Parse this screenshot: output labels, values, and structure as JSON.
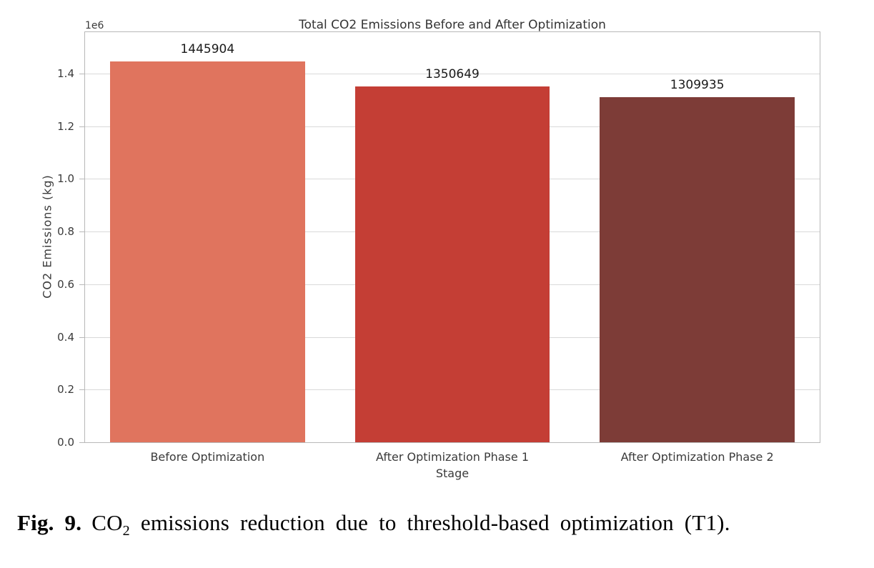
{
  "chart_data": {
    "type": "bar",
    "title": "Total CO2 Emissions Before and After Optimization",
    "xlabel": "Stage",
    "ylabel": "CO2 Emissions (kg)",
    "y_offset_label": "1e6",
    "categories": [
      "Before Optimization",
      "After Optimization Phase 1",
      "After Optimization Phase 2"
    ],
    "values": [
      1445904,
      1350649,
      1309935
    ],
    "bar_labels": [
      "1445904",
      "1350649",
      "1309935"
    ],
    "bar_colors": [
      "#e0745e",
      "#c43e35",
      "#7d3c37"
    ],
    "ylim": [
      0,
      1557000
    ],
    "ytick_values": [
      0,
      200000,
      400000,
      600000,
      800000,
      1000000,
      1200000,
      1400000
    ],
    "ytick_labels": [
      "0.0",
      "0.2",
      "0.4",
      "0.6",
      "0.8",
      "1.0",
      "1.2",
      "1.4"
    ],
    "grid": true,
    "legend": null,
    "colors": {
      "gridline": "#d9d9d9",
      "spine": "#b8b8b8",
      "text": "#3a3a3a"
    }
  },
  "caption": {
    "label": "Fig. 9.",
    "pre_sub": "CO",
    "sub": "2",
    "rest": " emissions reduction due to threshold-based optimization (T1)."
  }
}
